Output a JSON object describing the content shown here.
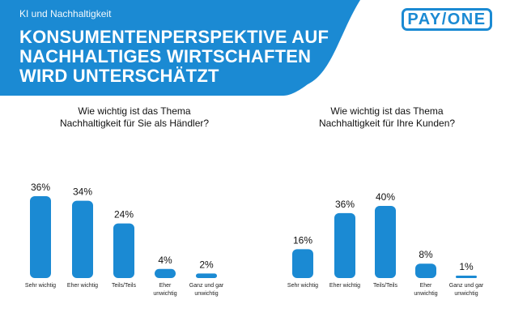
{
  "header": {
    "kicker": "KI und Nachhaltigkeit",
    "title_lines": [
      "KONSUMENTENPERSPEKTIVE AUF",
      "NACHHALTIGES WIRTSCHAFTEN",
      "WIRD UNTERSCHÄTZT"
    ]
  },
  "logo": {
    "text": "PAY/ONE"
  },
  "colors": {
    "accent": "#1b8ad3",
    "logo": "#1b8ad3"
  },
  "chart_data": [
    {
      "type": "bar",
      "title_lines": [
        "Wie wichtig ist das Thema",
        "Nachhaltigkeit für Sie als Händler?"
      ],
      "categories": [
        [
          "Sehr wichtig"
        ],
        [
          "Eher wichtig"
        ],
        [
          "Teils/Teils"
        ],
        [
          "Eher",
          "unwichtig"
        ],
        [
          "Ganz und gar",
          "unwichtig"
        ]
      ],
      "values": [
        36,
        34,
        24,
        4,
        2
      ],
      "value_labels": [
        "36%",
        "34%",
        "24%",
        "4%",
        "2%"
      ],
      "xlabel": "",
      "ylabel": "",
      "ylim": [
        0,
        40
      ]
    },
    {
      "type": "bar",
      "title_lines": [
        "Wie wichtig ist das Thema",
        "Nachhaltigkeit für Ihre Kunden?"
      ],
      "categories": [
        [
          "Sehr wichtig"
        ],
        [
          "Eher wichtig"
        ],
        [
          "Teils/Teils"
        ],
        [
          "Eher",
          "unwichtig"
        ],
        [
          "Ganz und gar",
          "unwichtig"
        ]
      ],
      "values": [
        16,
        36,
        40,
        8,
        1
      ],
      "value_labels": [
        "16%",
        "36%",
        "40%",
        "8%",
        "1%"
      ],
      "xlabel": "",
      "ylabel": "",
      "ylim": [
        0,
        40
      ]
    }
  ]
}
